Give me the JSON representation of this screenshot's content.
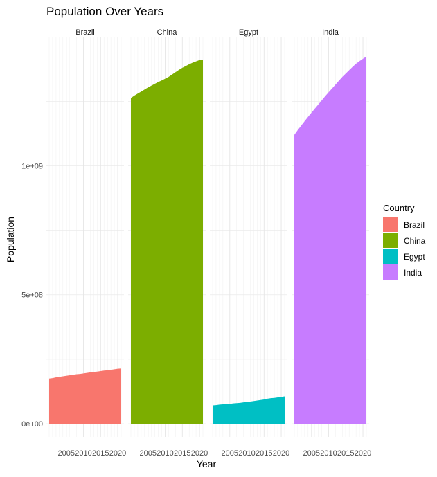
{
  "chart_data": {
    "type": "area",
    "title": "Population Over Years",
    "xlabel": "Year",
    "ylabel": "Population",
    "facets": [
      "Brazil",
      "China",
      "Egypt",
      "India"
    ],
    "x_ticks": [
      2005,
      2010,
      2015,
      2020
    ],
    "x_tick_labels": [
      "2005",
      "2010",
      "2015",
      "2020"
    ],
    "xlim": [
      2000,
      2021
    ],
    "y_ticks": [
      0,
      500000000,
      1000000000
    ],
    "y_tick_labels": [
      "0e+00",
      "5e+08",
      "1e+09"
    ],
    "ylim": [
      0,
      1420000000
    ],
    "grid": true,
    "legend": {
      "title": "Country",
      "position": "right"
    },
    "series": [
      {
        "name": "Brazil",
        "color": "#F8766D",
        "x": [
          2000,
          2001,
          2002,
          2003,
          2004,
          2005,
          2006,
          2007,
          2008,
          2009,
          2010,
          2011,
          2012,
          2013,
          2014,
          2015,
          2016,
          2017,
          2018,
          2019,
          2020,
          2021
        ],
        "values": [
          175000000,
          177000000,
          180000000,
          182000000,
          184000000,
          186000000,
          188000000,
          190000000,
          192000000,
          193000000,
          195000000,
          197000000,
          199000000,
          201000000,
          202000000,
          204000000,
          206000000,
          207000000,
          209000000,
          211000000,
          213000000,
          214000000
        ]
      },
      {
        "name": "China",
        "color": "#7CAE00",
        "x": [
          2000,
          2001,
          2002,
          2003,
          2004,
          2005,
          2006,
          2007,
          2008,
          2009,
          2010,
          2011,
          2012,
          2013,
          2014,
          2015,
          2016,
          2017,
          2018,
          2019,
          2020,
          2021
        ],
        "values": [
          1263000000,
          1272000000,
          1280000000,
          1288000000,
          1296000000,
          1304000000,
          1311000000,
          1318000000,
          1325000000,
          1331000000,
          1338000000,
          1345000000,
          1354000000,
          1363000000,
          1372000000,
          1380000000,
          1387000000,
          1394000000,
          1400000000,
          1405000000,
          1410000000,
          1412000000
        ]
      },
      {
        "name": "Egypt",
        "color": "#00BFC4",
        "x": [
          2000,
          2001,
          2002,
          2003,
          2004,
          2005,
          2006,
          2007,
          2008,
          2009,
          2010,
          2011,
          2012,
          2013,
          2014,
          2015,
          2016,
          2017,
          2018,
          2019,
          2020,
          2021
        ],
        "values": [
          71000000,
          72000000,
          74000000,
          75000000,
          76000000,
          77000000,
          79000000,
          80000000,
          81000000,
          83000000,
          84000000,
          86000000,
          88000000,
          90000000,
          92000000,
          94000000,
          97000000,
          99000000,
          100000000,
          102000000,
          104000000,
          106000000
        ]
      },
      {
        "name": "India",
        "color": "#C77CFF",
        "x": [
          2000,
          2001,
          2002,
          2003,
          2004,
          2005,
          2006,
          2007,
          2008,
          2009,
          2010,
          2011,
          2012,
          2013,
          2014,
          2015,
          2016,
          2017,
          2018,
          2019,
          2020,
          2021
        ],
        "values": [
          1120000000,
          1139000000,
          1156000000,
          1173000000,
          1190000000,
          1206000000,
          1222000000,
          1238000000,
          1254000000,
          1270000000,
          1285000000,
          1300000000,
          1315000000,
          1330000000,
          1345000000,
          1358000000,
          1371000000,
          1384000000,
          1396000000,
          1406000000,
          1415000000,
          1424000000
        ]
      }
    ]
  }
}
